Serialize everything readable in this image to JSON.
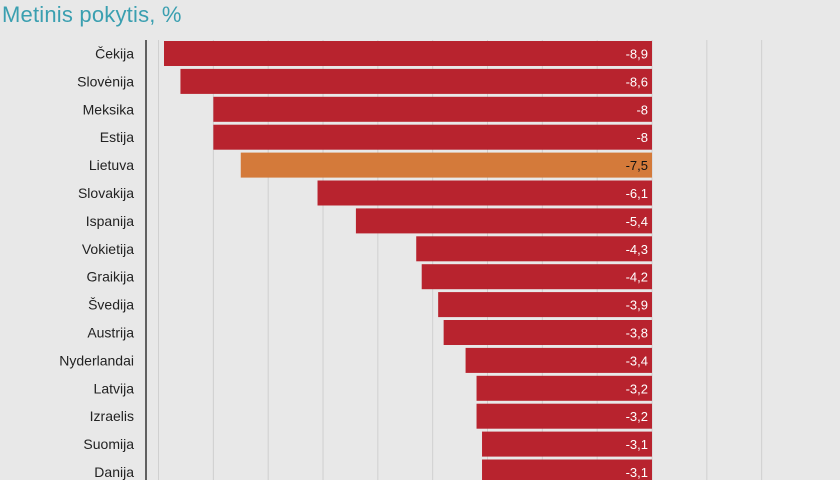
{
  "chart_data": {
    "type": "bar",
    "orientation": "horizontal",
    "title": "Metinis pokytis, %",
    "categories": [
      "Čekija",
      "Slovėnija",
      "Meksika",
      "Estija",
      "Lietuva",
      "Slovakija",
      "Ispanija",
      "Vokietija",
      "Graikija",
      "Švedija",
      "Austrija",
      "Nyderlandai",
      "Latvija",
      "Izraelis",
      "Suomija",
      "Danija"
    ],
    "values": [
      -8.9,
      -8.6,
      -8,
      -8,
      -7.5,
      -6.1,
      -5.4,
      -4.3,
      -4.2,
      -3.9,
      -3.8,
      -3.4,
      -3.2,
      -3.2,
      -3.1,
      -3.1
    ],
    "value_labels": [
      "-8,9",
      "-8,6",
      "-8",
      "-8",
      "-7,5",
      "-6,1",
      "-5,4",
      "-4,3",
      "-4,2",
      "-3,9",
      "-3,8",
      "-3,4",
      "-3,2",
      "-3,2",
      "-3,1",
      "-3,1"
    ],
    "highlight": "Lietuva",
    "colors": {
      "bar": "#b8232e",
      "highlight": "#d47a3a",
      "title": "#3a9fb0",
      "grid": "#cfcfcf",
      "axis": "#333333"
    },
    "grid": true,
    "xlim": [
      -9.2,
      2.6
    ]
  }
}
